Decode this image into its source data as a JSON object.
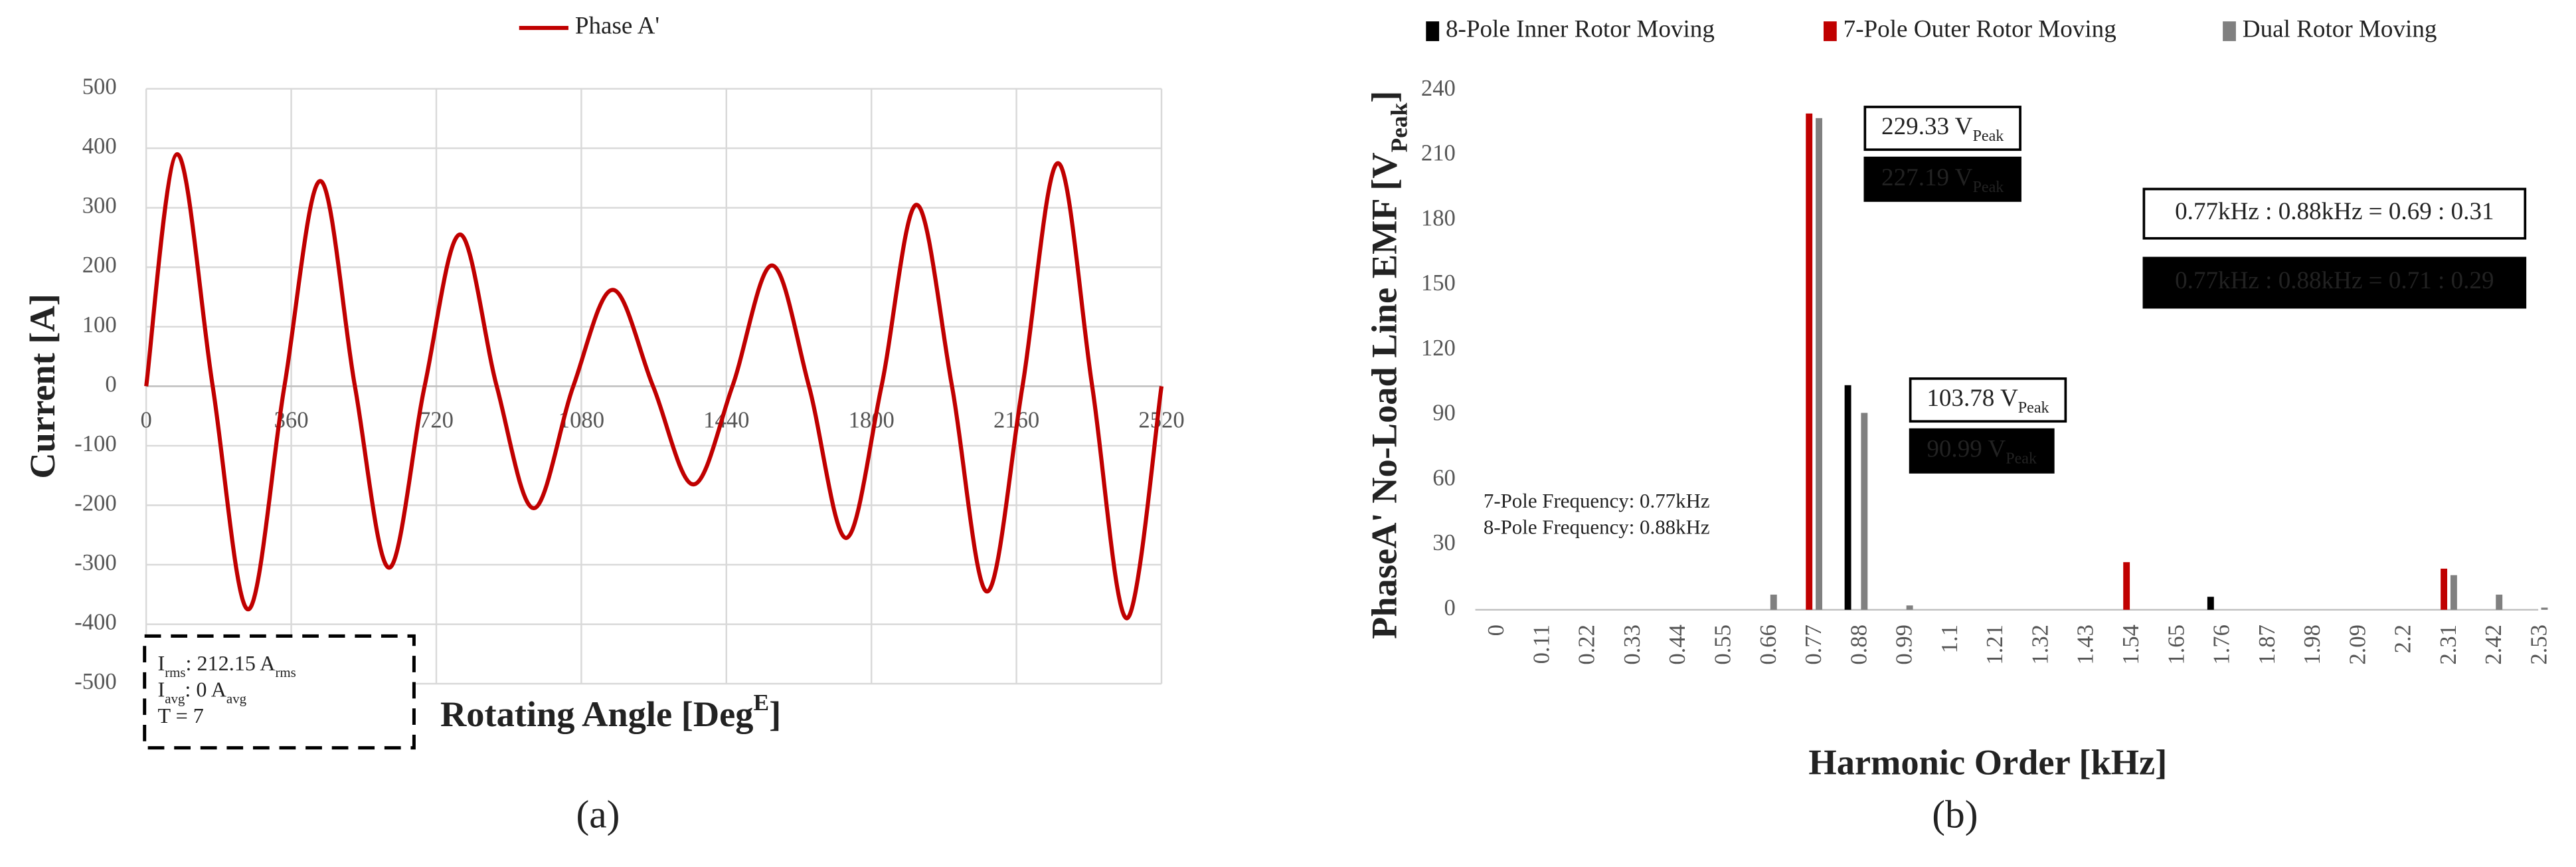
{
  "chart_data": [
    {
      "type": "line",
      "panel_label": "(a)",
      "x": [
        0,
        77,
        165,
        253,
        343,
        432,
        518,
        603,
        691,
        779,
        870,
        962,
        1060,
        1158,
        1258,
        1358,
        1455,
        1553,
        1645,
        1737,
        1825,
        1912,
        2000,
        2087,
        2175,
        2263,
        2348,
        2434,
        2520
      ],
      "series": [
        {
          "name": "Phase A'",
          "color": "#c00000",
          "values": [
            0,
            390,
            0,
            -375,
            0,
            345,
            0,
            -305,
            0,
            255,
            0,
            -205,
            0,
            162,
            0,
            -165,
            0,
            203,
            0,
            -255,
            0,
            305,
            0,
            -345,
            0,
            375,
            0,
            -390,
            0
          ]
        }
      ],
      "xlim": [
        0,
        2520
      ],
      "xticks": [
        0,
        360,
        720,
        1080,
        1440,
        1800,
        2160,
        2520
      ],
      "ylim": [
        -500,
        500
      ],
      "yticks": [
        -500,
        -400,
        -300,
        -200,
        -100,
        0,
        100,
        200,
        300,
        400,
        500
      ],
      "x_label": [
        "Rotating Angle [Deg",
        "E",
        "]"
      ],
      "y_label": "Current [A]",
      "annotation": [
        [
          "I",
          "rms",
          ": 212.15 A",
          "rms"
        ],
        [
          "I",
          "avg",
          ": 0 A",
          "avg"
        ],
        [
          "T = 7"
        ]
      ],
      "grid": true,
      "legend": "top"
    },
    {
      "type": "bar",
      "panel_label": "(b)",
      "categories": [
        "0",
        "0.11",
        "0.22",
        "0.33",
        "0.44",
        "0.55",
        "0.66",
        "0.77",
        "0.88",
        "0.99",
        "1.1",
        "1.21",
        "1.32",
        "1.43",
        "1.54",
        "1.65",
        "1.76",
        "1.87",
        "1.98",
        "2.09",
        "2.2",
        "2.31",
        "2.42",
        "2.53"
      ],
      "series": [
        {
          "name": "8-Pole Inner Rotor Moving",
          "color": "#000000",
          "values": [
            0,
            0,
            0,
            0,
            0,
            0,
            0,
            0,
            103.78,
            0,
            0,
            0,
            0,
            0,
            0,
            0,
            6,
            0,
            0,
            0,
            0,
            0,
            0,
            0
          ],
          "value_labels": [
            null,
            null,
            null,
            null,
            null,
            null,
            null,
            null,
            "103.78 V",
            null,
            null,
            null,
            null,
            null,
            null,
            null,
            null,
            null,
            null,
            null,
            null,
            null,
            null,
            null
          ]
        },
        {
          "name": "7-Pole Outer Rotor Moving",
          "color": "#c00000",
          "values": [
            0,
            0,
            0,
            0,
            0,
            0,
            0,
            229.33,
            0,
            0,
            0,
            0,
            0,
            0,
            22,
            0,
            0,
            0,
            0,
            0,
            0,
            19,
            0,
            0
          ],
          "value_labels": [
            null,
            null,
            null,
            null,
            null,
            null,
            null,
            "229.33 V",
            null,
            null,
            null,
            null,
            null,
            null,
            null,
            null,
            null,
            null,
            null,
            null,
            null,
            null,
            null,
            null
          ]
        },
        {
          "name": "Dual Rotor Moving",
          "color": "#808080",
          "values": [
            0,
            0,
            0,
            0,
            0,
            0,
            7,
            227.19,
            90.99,
            2,
            0,
            0,
            0,
            0,
            0,
            0,
            0,
            0,
            0,
            0,
            0,
            16,
            7,
            1
          ],
          "value_labels": [
            null,
            null,
            null,
            null,
            null,
            null,
            null,
            "227.19 V",
            "90.99 V",
            null,
            null,
            null,
            null,
            null,
            null,
            null,
            null,
            null,
            null,
            null,
            null,
            null,
            null,
            null
          ]
        }
      ],
      "value_label_sub": "Peak",
      "ylim": [
        0,
        240
      ],
      "yticks": [
        0,
        30,
        60,
        90,
        120,
        150,
        180,
        210,
        240
      ],
      "x_label": "Harmonic Order [kHz]",
      "y_label": [
        "PhaseA' No-Load Line EMF [V",
        "Peak",
        "]"
      ],
      "notes": [
        "7-Pole Frequency: 0.77kHz",
        "8-Pole Frequency: 0.88kHz"
      ],
      "ratio_boxes": [
        "0.77kHz : 0.88kHz = 0.69 : 0.31",
        "0.77kHz : 0.88kHz = 0.71 : 0.29"
      ],
      "grid": false,
      "legend": "top"
    }
  ]
}
